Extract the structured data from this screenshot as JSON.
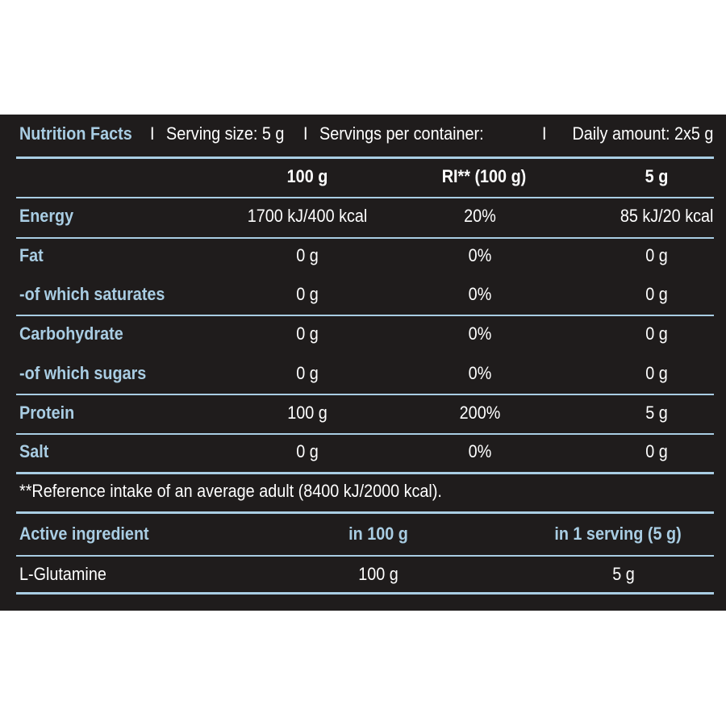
{
  "header": {
    "title": "Nutrition Facts",
    "sep1": "I",
    "serving_size": "Serving size: 5 g",
    "sep2": "I",
    "servings_per_container": "Servings per container:",
    "sep3": "I",
    "daily_amount": "Daily amount: 2x5 g"
  },
  "nutrition": {
    "columns": [
      "100 g",
      "RI** (100 g)",
      "5 g"
    ],
    "rows": [
      {
        "name": "Energy",
        "per100": "1700 kJ/400 kcal",
        "ri": "20%",
        "serving": "85 kJ/20 kcal"
      },
      {
        "name": "Fat",
        "per100": "0 g",
        "ri": "0%",
        "serving": "0 g"
      },
      {
        "name": "-of which saturates",
        "per100": "0 g",
        "ri": "0%",
        "serving": "0 g"
      },
      {
        "name": "Carbohydrate",
        "per100": "0 g",
        "ri": "0%",
        "serving": "0 g"
      },
      {
        "name": "-of which sugars",
        "per100": "0 g",
        "ri": "0%",
        "serving": "0 g"
      },
      {
        "name": "Protein",
        "per100": "100 g",
        "ri": "200%",
        "serving": "5 g"
      },
      {
        "name": "Salt",
        "per100": "0 g",
        "ri": "0%",
        "serving": "0 g"
      }
    ],
    "footnote": "**Reference intake of an average adult (8400 kJ/2000 kcal)."
  },
  "active": {
    "header": [
      "Active ingredient",
      "in 100 g",
      "in 1 serving (5 g)"
    ],
    "rows": [
      {
        "name": "L-Glutamine",
        "per100": "100 g",
        "serving": "5 g"
      }
    ]
  },
  "colors": {
    "background": "#1f1c1c",
    "accent": "#a9cde3",
    "text": "#ffffff",
    "page": "#ffffff"
  }
}
